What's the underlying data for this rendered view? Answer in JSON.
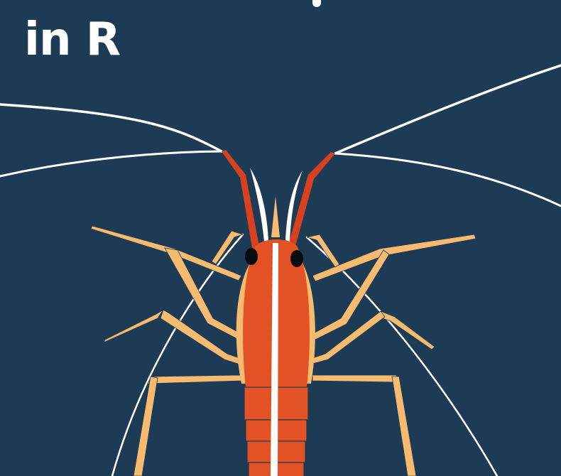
{
  "title": {
    "line": "in R"
  },
  "colors": {
    "background": "#1e3b55",
    "text": "#ffffff",
    "antenna_red": "#d9401f",
    "body_orange": "#e35225",
    "leg": "#f6bb6f",
    "eye": "#0b0b14",
    "whisker": "#ffffff"
  },
  "illustration": {
    "subject": "shrimp-illustration"
  }
}
